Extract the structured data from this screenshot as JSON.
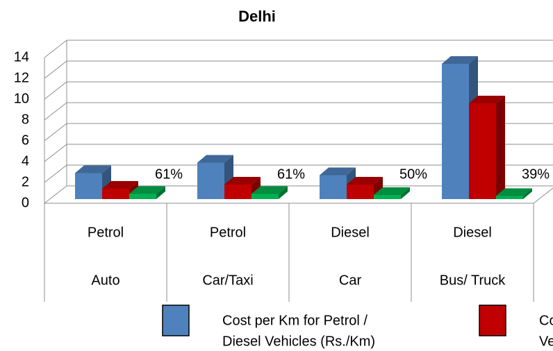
{
  "chart_data": {
    "type": "bar3d",
    "title": "Delhi",
    "categories": [
      [
        "Petrol",
        "Auto"
      ],
      [
        "Petrol",
        "Car/Taxi"
      ],
      [
        "Diesel",
        "Car"
      ],
      [
        "Diesel",
        "Bus/ Truck"
      ]
    ],
    "series": [
      {
        "name": [
          "Cost per Km for Petrol /",
          "Diesel Vehicles (Rs./Km)"
        ],
        "color": "#4f81bd",
        "values": [
          2.5,
          3.5,
          2.3,
          13
        ]
      },
      {
        "name": [
          "Co",
          "Ve"
        ],
        "color": "#c00000",
        "values": [
          1.0,
          1.4,
          1.4,
          9.2
        ]
      },
      {
        "color": "#00b050",
        "values": [
          0.5,
          0.5,
          0.4,
          0.3
        ]
      }
    ],
    "savings": {
      "values": [
        61,
        61,
        50,
        39
      ],
      "value_labels": [
        "61%",
        "61%",
        "50%",
        "39%"
      ]
    },
    "ylim": [
      0,
      14
    ],
    "yticks": [
      0,
      2,
      4,
      6,
      8,
      10,
      12,
      14
    ],
    "grid": true
  }
}
